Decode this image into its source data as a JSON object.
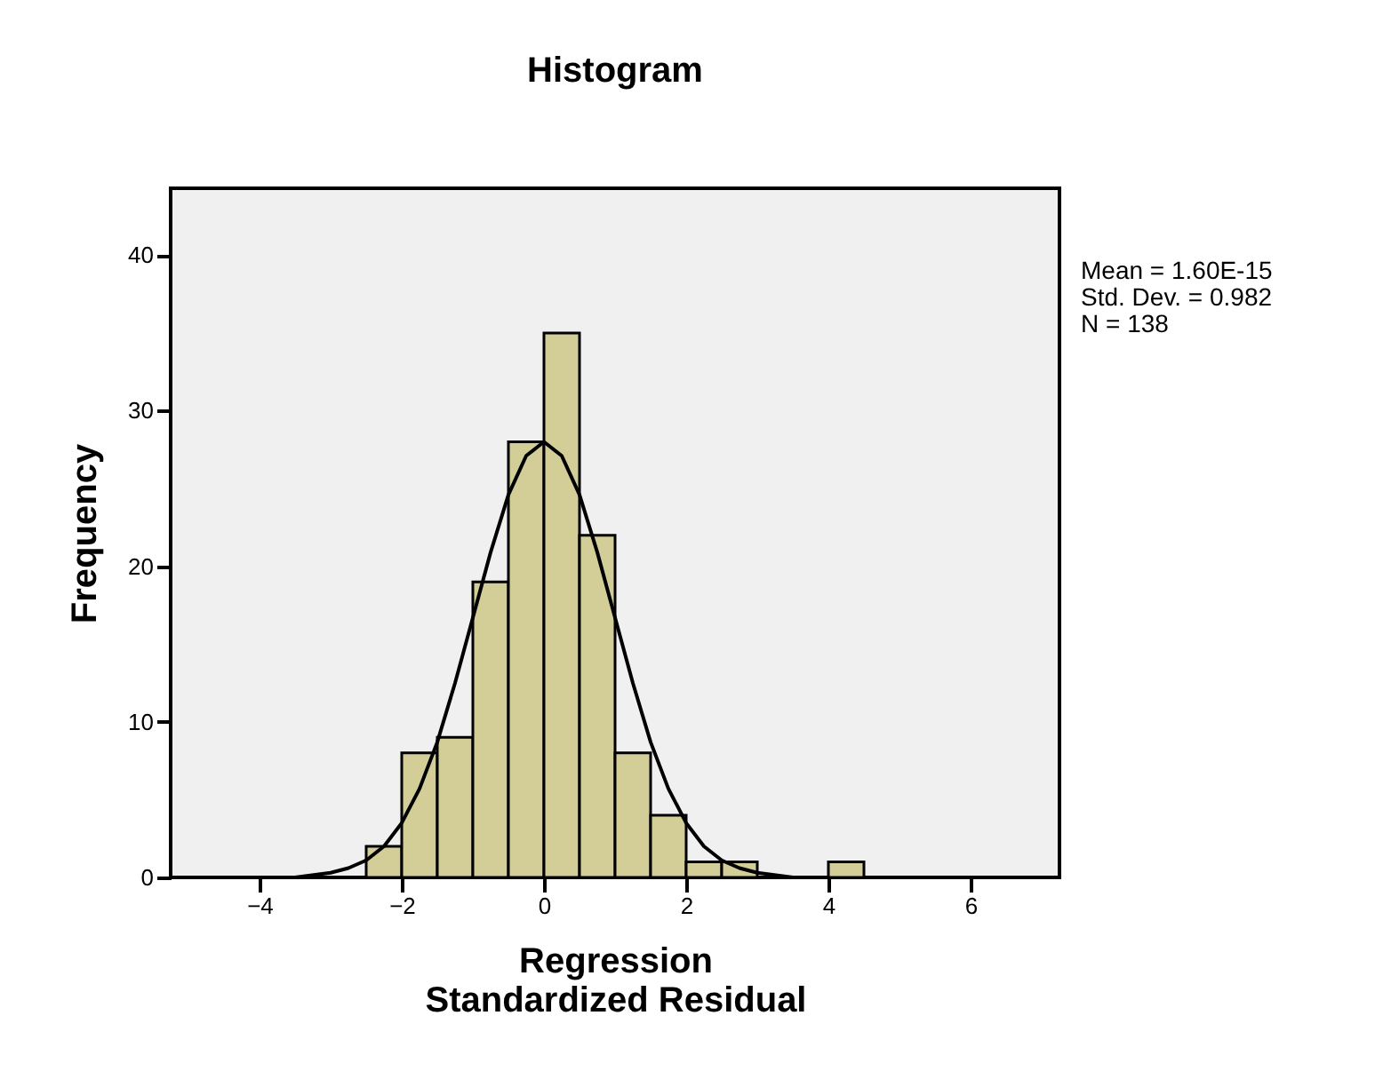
{
  "chart_data": {
    "type": "histogram",
    "title": "Histogram",
    "xlabel": "Regression Standardized Residual",
    "ylabel": "Frequency",
    "bins": [
      -2.5,
      -2.0,
      -1.5,
      -1.0,
      -0.5,
      0.0,
      0.5,
      1.0,
      1.5,
      2.0,
      2.5,
      3.0,
      3.5,
      4.0,
      4.5
    ],
    "values": [
      2,
      8,
      9,
      19,
      28,
      35,
      22,
      8,
      4,
      1,
      1,
      0,
      0,
      1
    ],
    "color": "#d3ce98",
    "series": [
      {
        "type": "line",
        "color": "#000000",
        "x": [
          -4.0,
          -3.5,
          -3.0,
          -2.75,
          -2.5,
          -2.25,
          -2.0,
          -1.75,
          -1.5,
          -1.25,
          -1.0,
          -0.75,
          -0.5,
          -0.25,
          0.0,
          0.25,
          0.5,
          0.75,
          1.0,
          1.25,
          1.5,
          1.75,
          2.0,
          2.25,
          2.5,
          2.75,
          3.0,
          3.5,
          4.0
        ],
        "values": [
          0.0,
          0.0,
          0.3,
          0.6,
          1.1,
          2.0,
          3.5,
          5.7,
          8.7,
          12.5,
          16.7,
          20.9,
          24.6,
          27.1,
          28.0,
          27.1,
          24.6,
          20.9,
          16.7,
          12.5,
          8.7,
          5.7,
          3.5,
          2.0,
          1.1,
          0.6,
          0.3,
          0.0,
          0.0
        ]
      }
    ],
    "marker": "none",
    "line_style": "solid",
    "xlim": [
      -5.25,
      7.25
    ],
    "xticks": [
      -4,
      -2,
      0,
      2,
      4,
      6
    ],
    "ylim": [
      0,
      44.3
    ],
    "yticks": [
      0,
      10,
      20,
      30,
      40
    ],
    "annotations": [
      "Mean = 1.60E-15",
      "Std. Dev. = 0.982",
      "N = 138"
    ]
  }
}
